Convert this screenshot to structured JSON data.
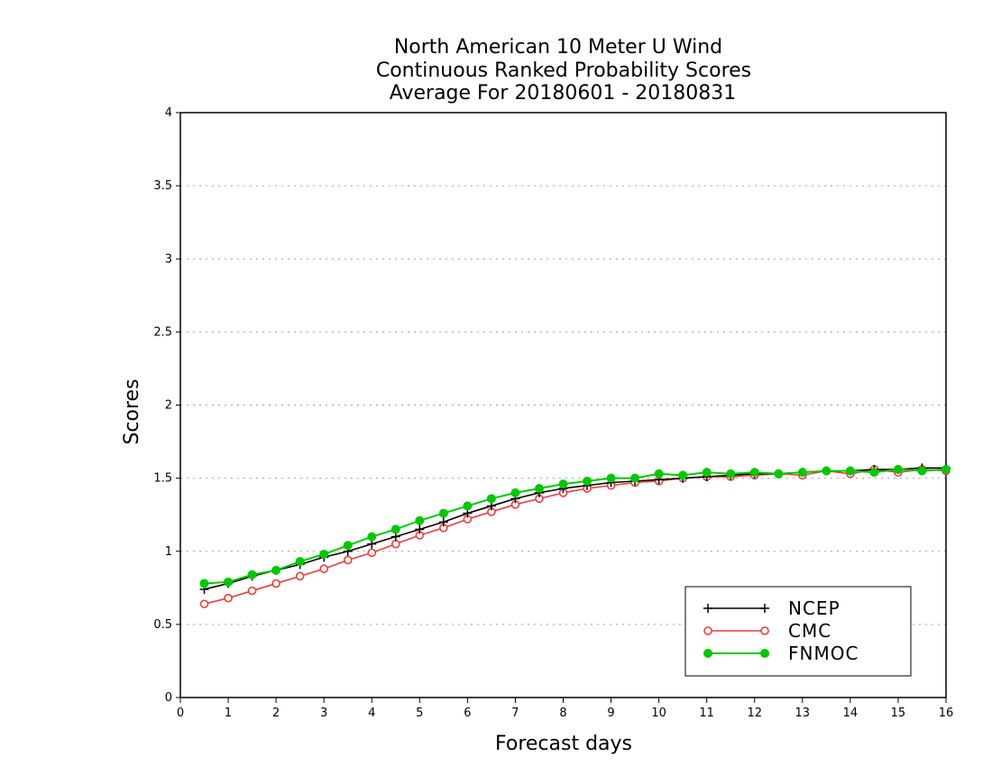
{
  "chart_data": {
    "type": "line",
    "title_lines": [
      "North American 10 Meter U Wind",
      "Continuous Ranked Probability Scores",
      "Average For 20180601 - 20180831"
    ],
    "xlabel": "Forecast days",
    "ylabel": "Scores",
    "xlim": [
      0,
      16
    ],
    "ylim": [
      0,
      4
    ],
    "x_ticks": [
      "0",
      "1",
      "2",
      "3",
      "4",
      "5",
      "6",
      "7",
      "8",
      "9",
      "10",
      "11",
      "12",
      "13",
      "14",
      "15",
      "16"
    ],
    "y_ticks": [
      "0",
      "0.5",
      "1",
      "1.5",
      "2",
      "2.5",
      "3",
      "3.5",
      "4"
    ],
    "grid": "horizontal dotted",
    "legend_position": "bottom-right",
    "x": [
      0.5,
      1,
      1.5,
      2,
      2.5,
      3,
      3.5,
      4,
      4.5,
      5,
      5.5,
      6,
      6.5,
      7,
      7.5,
      8,
      8.5,
      9,
      9.5,
      10,
      10.5,
      11,
      11.5,
      12,
      12.5,
      13,
      13.5,
      14,
      14.5,
      15,
      15.5,
      16
    ],
    "series": [
      {
        "name": "NCEP",
        "color": "#000000",
        "marker": "plus",
        "values": [
          0.74,
          0.78,
          0.83,
          0.87,
          0.91,
          0.96,
          1.0,
          1.05,
          1.1,
          1.15,
          1.2,
          1.26,
          1.31,
          1.36,
          1.4,
          1.43,
          1.45,
          1.47,
          1.48,
          1.49,
          1.5,
          1.51,
          1.52,
          1.53,
          1.53,
          1.54,
          1.55,
          1.55,
          1.56,
          1.56,
          1.57,
          1.57
        ]
      },
      {
        "name": "CMC",
        "color": "#f03c3c",
        "marker": "open-circle",
        "values": [
          0.64,
          0.68,
          0.73,
          0.78,
          0.83,
          0.88,
          0.94,
          0.99,
          1.05,
          1.11,
          1.16,
          1.22,
          1.27,
          1.32,
          1.36,
          1.4,
          1.43,
          1.45,
          1.47,
          1.48,
          1.5,
          1.51,
          1.51,
          1.52,
          1.53,
          1.52,
          1.55,
          1.53,
          1.56,
          1.54,
          1.56,
          1.55
        ]
      },
      {
        "name": "FNMOC",
        "color": "#00c800",
        "marker": "filled-circle",
        "values": [
          0.78,
          0.79,
          0.84,
          0.87,
          0.93,
          0.98,
          1.04,
          1.1,
          1.15,
          1.21,
          1.26,
          1.31,
          1.36,
          1.4,
          1.43,
          1.46,
          1.48,
          1.5,
          1.5,
          1.53,
          1.52,
          1.54,
          1.53,
          1.54,
          1.53,
          1.54,
          1.55,
          1.55,
          1.54,
          1.56,
          1.55,
          1.56
        ]
      }
    ]
  }
}
